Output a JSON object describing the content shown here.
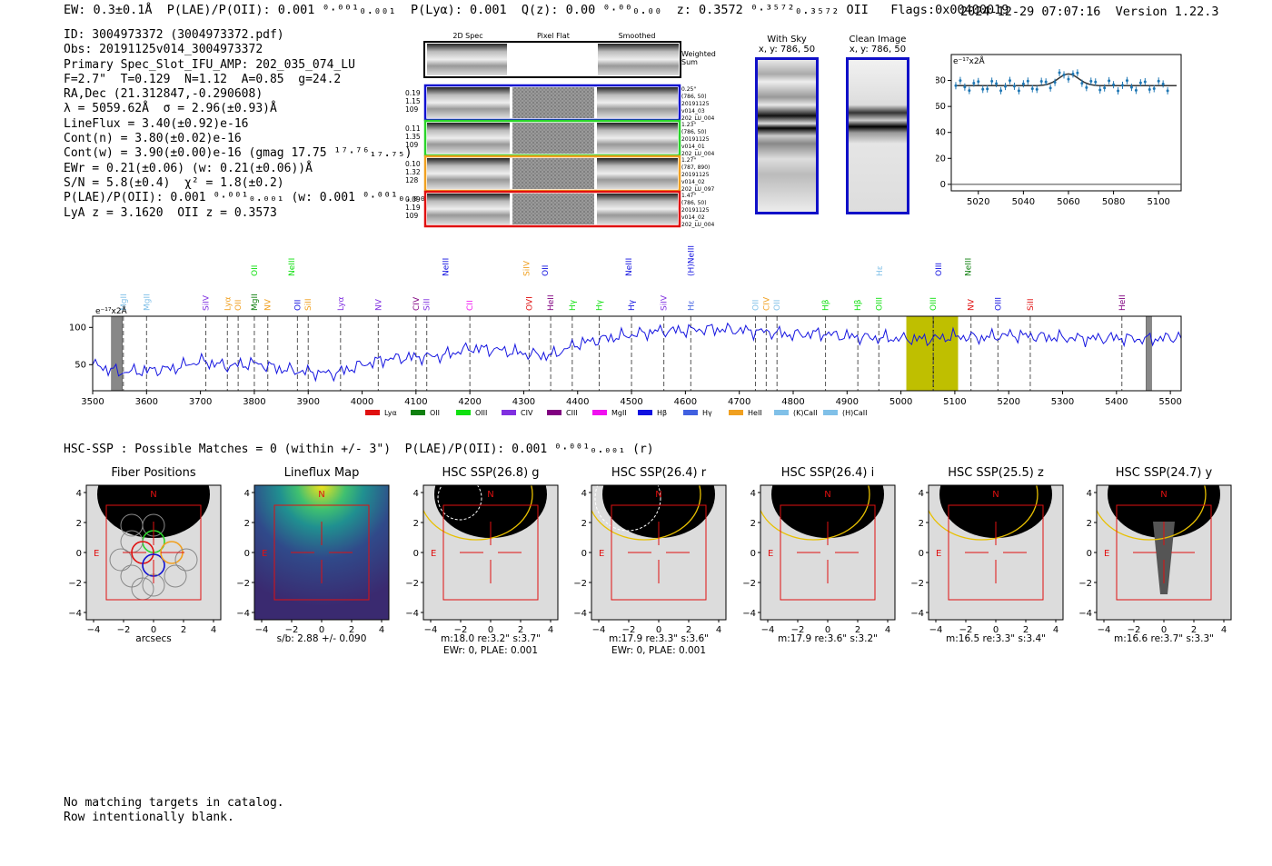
{
  "header": {
    "left": "EW: 0.3±0.1Å  P(LAE)/P(OII): 0.001 ⁰·⁰⁰¹₀.₀₀₁  P(Lyα): 0.001  Q(z): 0.00 ⁰·⁰⁰₀.₀₀  z: 0.3572 ⁰·³⁵⁷²₀.₃₅₇₂ OII   Flags:0x00400019",
    "right": "2024-12-29 07:07:16  Version 1.22.3"
  },
  "info_lines": [
    "ID: 3004973372 (3004973372.pdf)",
    "Obs: 20191125v014_3004973372",
    "Primary Spec_Slot_IFU_AMP: 202_035_074_LU",
    "F=2.7\"  T=0.129  N=1.12  A=0.85  g=24.2",
    "RA,Dec (21.312847,-0.290608)",
    "λ = 5059.62Å  σ = 2.96(±0.93)Å",
    "LineFlux = 3.40(±0.92)e-16",
    "Cont(n) = 3.80(±0.02)e-16",
    "Cont(w) = 3.90(±0.00)e-16 (gmag 17.75 ¹⁷·⁷⁶₁₇.₇₅)",
    "EWr = 0.21(±0.06) (w: 0.21(±0.06))Å",
    "S/N = 5.8(±0.4)  χ² = 1.8(±0.2)",
    "P(LAE)/P(OII): 0.001 ⁰·⁰⁰¹₀.₀₀₁ (w: 0.001 ⁰·⁰⁰¹₀.₀₀₁)",
    "LyA z = 3.1620  OII z = 0.3573"
  ],
  "cutouts": {
    "col_titles": [
      "2D Spec",
      "Pixel Flat",
      "Smoothed"
    ],
    "weighted_label": "Weighted\nSum",
    "rows": [
      {
        "left": [
          "0.19",
          "1.15",
          "109"
        ],
        "right": [
          "0.25\"",
          "(786, 50)",
          "20191125",
          "v014_03",
          "202_LU_004"
        ],
        "color": "#1010d0"
      },
      {
        "left": [
          "0.11",
          "1.35",
          "109"
        ],
        "right": [
          "1.23\"",
          "(786, 50)",
          "20191125",
          "v014_01",
          "202_LU_004"
        ],
        "color": "#2ad42a"
      },
      {
        "left": [
          "0.10",
          "1.32",
          "128"
        ],
        "right": [
          "1.27\"",
          "(787, 890)",
          "20191125",
          "v014_02",
          "202_LU_097"
        ],
        "color": "#f0a020"
      },
      {
        "left": [
          "0.09",
          "1.19",
          "109"
        ],
        "right": [
          "1.47\"",
          "(786, 50)",
          "20191125",
          "v014_02",
          "202_LU_004"
        ],
        "color": "#e01010"
      }
    ]
  },
  "sky_panels": {
    "with_sky": {
      "title": "With Sky",
      "coords": "x, y: 786, 50"
    },
    "clean": {
      "title": "Clean Image",
      "coords": "x, y: 786, 50"
    }
  },
  "zoom_chart": {
    "unit": "e⁻¹⁷x2Å",
    "x_ticks": [
      5020,
      5040,
      5060,
      5080,
      5100
    ],
    "y_ticks": [
      0,
      20,
      40,
      60,
      80
    ],
    "xlim": [
      5008,
      5110
    ],
    "ylim": [
      -5,
      100
    ]
  },
  "chart_data": {
    "type": "line",
    "ylabel_unit": "e⁻¹⁷x2Å",
    "xlim": [
      3500,
      5520
    ],
    "ylim": [
      15,
      115
    ],
    "x_ticks": [
      3500,
      3600,
      3700,
      3800,
      3900,
      4000,
      4100,
      4200,
      4300,
      4400,
      4500,
      4600,
      4700,
      4800,
      4900,
      5000,
      5100,
      5200,
      5300,
      5400,
      5500
    ],
    "y_ticks": [
      50,
      100
    ],
    "x": [
      3500,
      3550,
      3600,
      3650,
      3700,
      3750,
      3800,
      3850,
      3900,
      3950,
      4000,
      4050,
      4100,
      4150,
      4200,
      4250,
      4300,
      4350,
      4400,
      4450,
      4500,
      4550,
      4600,
      4650,
      4700,
      4750,
      4800,
      4850,
      4900,
      4950,
      5000,
      5050,
      5100,
      5150,
      5200,
      5250,
      5300,
      5350,
      5400,
      5450,
      5500,
      5520
    ],
    "y": [
      50,
      40,
      42,
      45,
      55,
      48,
      52,
      44,
      40,
      38,
      50,
      58,
      60,
      62,
      72,
      70,
      65,
      62,
      78,
      85,
      90,
      95,
      96,
      98,
      96,
      94,
      90,
      92,
      88,
      86,
      85,
      84,
      88,
      86,
      90,
      88,
      86,
      85,
      86,
      84,
      86,
      88
    ],
    "highlight_band": [
      5010,
      5106
    ],
    "center_line": 5060,
    "masked_regions": [
      [
        3535,
        3555
      ],
      [
        5455,
        5465
      ]
    ],
    "legend": [
      "Lyα",
      "OII",
      "OIII",
      "CIV",
      "CIII",
      "MgII",
      "Hβ",
      "Hγ",
      "HeII",
      "(K)CaII",
      "(H)CaII"
    ],
    "legend_colors": [
      "#e01010",
      "#108010",
      "#10e010",
      "#8030e0",
      "#800080",
      "#f010f0",
      "#1010e0",
      "#4060e0",
      "#f0a020",
      "#80c0e8",
      "#80c0e8"
    ],
    "line_marks": [
      {
        "label": "MgII",
        "x": 3557,
        "color": "#80c0e8"
      },
      {
        "label": "MgII",
        "x": 3600,
        "color": "#80c0e8"
      },
      {
        "label": "SiIV",
        "x": 3710,
        "color": "#8030e0"
      },
      {
        "label": "Lyα",
        "x": 3750,
        "color": "#f0a020"
      },
      {
        "label": "OII",
        "x": 3770,
        "color": "#f0a020"
      },
      {
        "label": "MgII",
        "x": 3800,
        "color": "#108010"
      },
      {
        "label": "NV",
        "x": 3825,
        "color": "#f0a020"
      },
      {
        "label": "OII",
        "x": 3880,
        "color": "#1010e0"
      },
      {
        "label": "SiII",
        "x": 3900,
        "color": "#f0a020"
      },
      {
        "label": "Lyα",
        "x": 3960,
        "color": "#8030e0"
      },
      {
        "label": "NV",
        "x": 4030,
        "color": "#8030e0"
      },
      {
        "label": "CIV",
        "x": 4100,
        "color": "#800080"
      },
      {
        "label": "SiII",
        "x": 4120,
        "color": "#8030e0"
      },
      {
        "label": "CII",
        "x": 4200,
        "color": "#f010f0"
      },
      {
        "label": "OVI",
        "x": 4310,
        "color": "#e01010"
      },
      {
        "label": "HeII",
        "x": 4350,
        "color": "#800080"
      },
      {
        "label": "Hγ",
        "x": 4390,
        "color": "#10e010"
      },
      {
        "label": "Hγ",
        "x": 4440,
        "color": "#10e010"
      },
      {
        "label": "Hγ",
        "x": 4500,
        "color": "#1010e0"
      },
      {
        "label": "SiIV",
        "x": 4560,
        "color": "#8030e0"
      },
      {
        "label": "Hε",
        "x": 4610,
        "color": "#4060e0"
      },
      {
        "label": "OII",
        "x": 4730,
        "color": "#80c0e8"
      },
      {
        "label": "CIV",
        "x": 4750,
        "color": "#f0a020"
      },
      {
        "label": "OII",
        "x": 4770,
        "color": "#80c0e8"
      },
      {
        "label": "Hβ",
        "x": 4860,
        "color": "#10e010"
      },
      {
        "label": "Hβ",
        "x": 4920,
        "color": "#10e010"
      },
      {
        "label": "OIII",
        "x": 4959,
        "color": "#10e010"
      },
      {
        "label": "OIII",
        "x": 5060,
        "color": "#10e010"
      },
      {
        "label": "NV",
        "x": 5130,
        "color": "#e01010"
      },
      {
        "label": "OIII",
        "x": 5180,
        "color": "#1010e0"
      },
      {
        "label": "SiII",
        "x": 5240,
        "color": "#e01010"
      },
      {
        "label": "HeII",
        "x": 5410,
        "color": "#800080"
      }
    ],
    "upper_marks": [
      {
        "label": "OII",
        "x": 3800,
        "color": "#10e010"
      },
      {
        "label": "NeIII",
        "x": 3869,
        "color": "#10e010"
      },
      {
        "label": "NeIII",
        "x": 4155,
        "color": "#1010e0"
      },
      {
        "label": "SiIV",
        "x": 4305,
        "color": "#f0a020"
      },
      {
        "label": "OII",
        "x": 4340,
        "color": "#1010e0"
      },
      {
        "label": "NeIII",
        "x": 4495,
        "color": "#1010e0"
      },
      {
        "label": "(H)NeIII",
        "x": 4610,
        "color": "#1010e0"
      },
      {
        "label": "Hε",
        "x": 4960,
        "color": "#80c0e8"
      },
      {
        "label": "OIII",
        "x": 5070,
        "color": "#1010e0"
      },
      {
        "label": "NeIII",
        "x": 5125,
        "color": "#108010"
      }
    ]
  },
  "hsc_line": "HSC-SSP : Possible Matches = 0 (within +/- 3\")  P(LAE)/P(OII): 0.001 ⁰·⁰⁰¹₀.₀₀₁ (r)",
  "stamps": [
    {
      "title": "Fiber Positions",
      "cap1": "arcsecs",
      "cap2": ""
    },
    {
      "title": "Lineflux Map",
      "cap1": "s/b: 2.88 +/- 0.090",
      "cap2": ""
    },
    {
      "title": "HSC SSP(26.8) g",
      "cap1": "m:18.0  re:3.2\"  s:3.7\"",
      "cap2": "EWr: 0, PLAE: 0.001"
    },
    {
      "title": "HSC SSP(26.4) r",
      "cap1": "m:17.9  re:3.3\"  s:3.6\"",
      "cap2": "EWr: 0, PLAE: 0.001"
    },
    {
      "title": "HSC SSP(26.4) i",
      "cap1": "m:17.9  re:3.6\"  s:3.2\"",
      "cap2": ""
    },
    {
      "title": "HSC SSP(25.5) z",
      "cap1": "m:16.5  re:3.3\"  s:3.4\"",
      "cap2": ""
    },
    {
      "title": "HSC SSP(24.7) y",
      "cap1": "m:16.6  re:3.7\"  s:3.3\"",
      "cap2": ""
    }
  ],
  "stamp_axis": {
    "x_ticks": [
      "−4",
      "−2",
      "0",
      "2",
      "4"
    ],
    "y_ticks": [
      "4",
      "2",
      "0",
      "−2",
      "−4"
    ],
    "n_label": "N",
    "e_label": "E"
  },
  "footer": [
    "No matching targets in catalog.",
    "Row intentionally blank."
  ]
}
